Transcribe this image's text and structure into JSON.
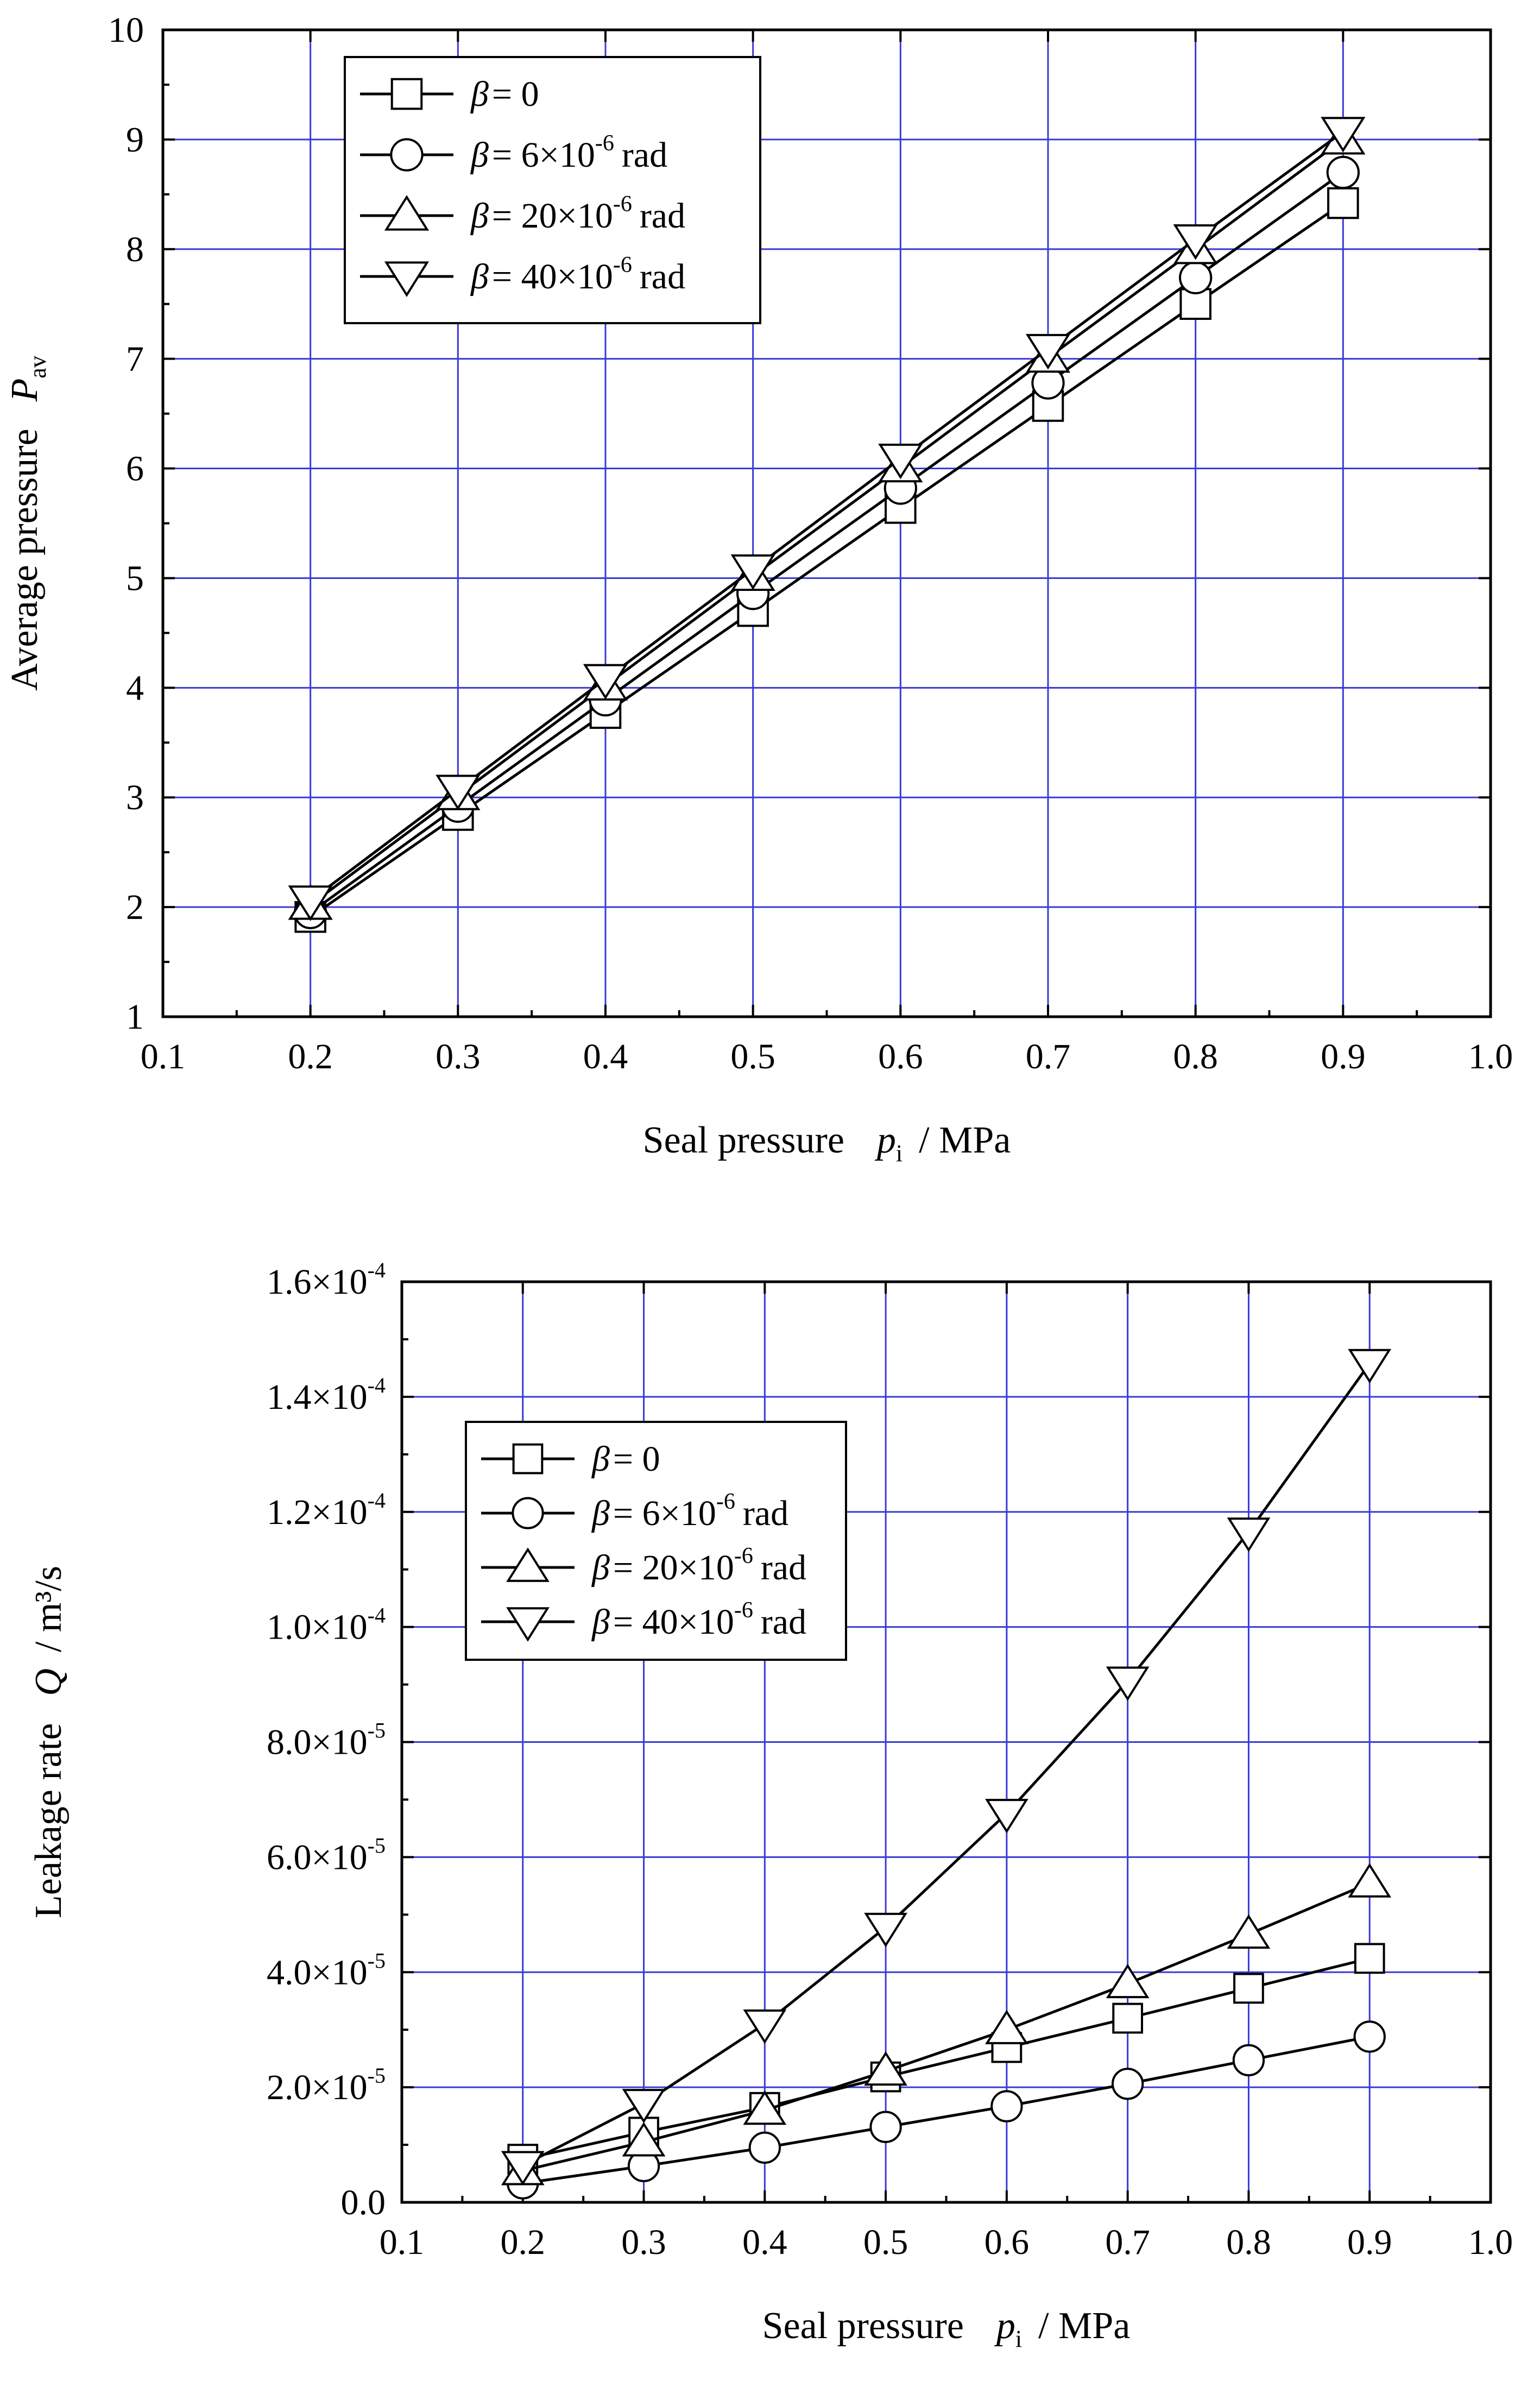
{
  "chart_data": [
    {
      "type": "line",
      "title": "",
      "xlabel": "Seal pressure",
      "xlabel_symbol": "p",
      "xlabel_subscript": "i",
      "xlabel_unit": "/  MPa",
      "ylabel": "Average pressure",
      "ylabel_symbol": "P",
      "ylabel_subscript": "av",
      "xlim": [
        0.1,
        1.0
      ],
      "ylim": [
        1,
        10
      ],
      "x_ticks": [
        0.1,
        0.2,
        0.3,
        0.4,
        0.5,
        0.6,
        0.7,
        0.8,
        0.9,
        1.0
      ],
      "x_tick_labels": [
        "0.1",
        "0.2",
        "0.3",
        "0.4",
        "0.5",
        "0.6",
        "0.7",
        "0.8",
        "0.9",
        "1.0"
      ],
      "y_ticks": [
        1,
        2,
        3,
        4,
        5,
        6,
        7,
        8,
        9,
        10
      ],
      "y_tick_labels": [
        "1",
        "2",
        "3",
        "4",
        "5",
        "6",
        "7",
        "8",
        "9",
        "10"
      ],
      "grid": true,
      "legend_position": "top-left",
      "x": [
        0.2,
        0.3,
        0.4,
        0.5,
        0.6,
        0.7,
        0.8,
        0.9
      ],
      "series": [
        {
          "name": "β = 0",
          "legend_sym": "β",
          "legend_rest": "= 0",
          "legend_exp": "",
          "legend_unit": "",
          "marker": "square",
          "values": [
            1.91,
            2.84,
            3.77,
            4.7,
            5.64,
            6.57,
            7.5,
            8.42
          ]
        },
        {
          "name": "β = 6×10^-6 rad",
          "legend_sym": "β",
          "legend_rest": "=   6×10",
          "legend_exp": "-6",
          "legend_unit": "rad",
          "marker": "circle",
          "values": [
            1.95,
            2.92,
            3.89,
            4.86,
            5.82,
            6.78,
            7.74,
            8.7
          ]
        },
        {
          "name": "β = 20×10^-6 rad",
          "legend_sym": "β",
          "legend_rest": "= 20×10",
          "legend_exp": "-6",
          "legend_unit": "rad",
          "marker": "triangle-up",
          "values": [
            2.02,
            3.02,
            4.02,
            5.02,
            6.01,
            7.01,
            8.0,
            9.0
          ]
        },
        {
          "name": "β = 40×10^-6 rad",
          "legend_sym": "β",
          "legend_rest": "= 40×10",
          "legend_exp": "-6",
          "legend_unit": "rad",
          "marker": "triangle-down",
          "values": [
            2.06,
            3.07,
            4.08,
            5.08,
            6.09,
            7.09,
            8.09,
            9.07
          ]
        }
      ]
    },
    {
      "type": "line",
      "title": "",
      "xlabel": "Seal pressure",
      "xlabel_symbol": "p",
      "xlabel_subscript": "i",
      "xlabel_unit": "/  MPa",
      "ylabel": "Leakage rate",
      "ylabel_symbol": "Q",
      "ylabel_unit": "/  m³/s",
      "xlim": [
        0.1,
        1.0
      ],
      "ylim": [
        0,
        0.00016
      ],
      "x_ticks": [
        0.1,
        0.2,
        0.3,
        0.4,
        0.5,
        0.6,
        0.7,
        0.8,
        0.9,
        1.0
      ],
      "x_tick_labels": [
        "0.1",
        "0.2",
        "0.3",
        "0.4",
        "0.5",
        "0.6",
        "0.7",
        "0.8",
        "0.9",
        "1.0"
      ],
      "y_ticks": [
        0,
        2e-05,
        4e-05,
        6e-05,
        8e-05,
        0.0001,
        0.00012,
        0.00014,
        0.00016
      ],
      "y_tick_mantissas": [
        "0.0",
        "2.0×10",
        "4.0×10",
        "6.0×10",
        "8.0×10",
        "1.0×10",
        "1.2×10",
        "1.4×10",
        "1.6×10"
      ],
      "y_tick_exponents": [
        "",
        "-5",
        "-5",
        "-5",
        "-5",
        "-4",
        "-4",
        "-4",
        "-4"
      ],
      "grid": true,
      "legend_position": "top-left",
      "x": [
        0.2,
        0.3,
        0.4,
        0.5,
        0.6,
        0.7,
        0.8,
        0.9
      ],
      "series": [
        {
          "name": "β = 0",
          "legend_sym": "β",
          "legend_rest": "= 0",
          "legend_exp": "",
          "legend_unit": "",
          "marker": "square",
          "values": [
            7.5e-06,
            1.22e-05,
            1.65e-05,
            2.18e-05,
            2.69e-05,
            3.2e-05,
            3.72e-05,
            4.24e-05
          ]
        },
        {
          "name": "β = 6×10^-6 rad",
          "legend_sym": "β",
          "legend_rest": "=   6×10",
          "legend_exp": "-6",
          "legend_unit": "rad",
          "marker": "circle",
          "values": [
            3.3e-06,
            6.3e-06,
            9.5e-06,
            1.31e-05,
            1.67e-05,
            2.06e-05,
            2.47e-05,
            2.88e-05
          ]
        },
        {
          "name": "β = 20×10^-6 rad",
          "legend_sym": "β",
          "legend_rest": "= 20×10",
          "legend_exp": "-6",
          "legend_unit": "rad",
          "marker": "triangle-up",
          "values": [
            5.5e-06,
            1.05e-05,
            1.6e-05,
            2.28e-05,
            3e-05,
            3.8e-05,
            4.66e-05,
            5.55e-05
          ]
        },
        {
          "name": "β = 40×10^-6 rad",
          "legend_sym": "β",
          "legend_rest": "= 40×10",
          "legend_exp": "-6",
          "legend_unit": "rad",
          "marker": "triangle-down",
          "values": [
            6.4e-06,
            1.72e-05,
            3.1e-05,
            4.78e-05,
            6.76e-05,
            9.06e-05,
            0.0001165,
            0.0001458
          ]
        }
      ]
    }
  ]
}
